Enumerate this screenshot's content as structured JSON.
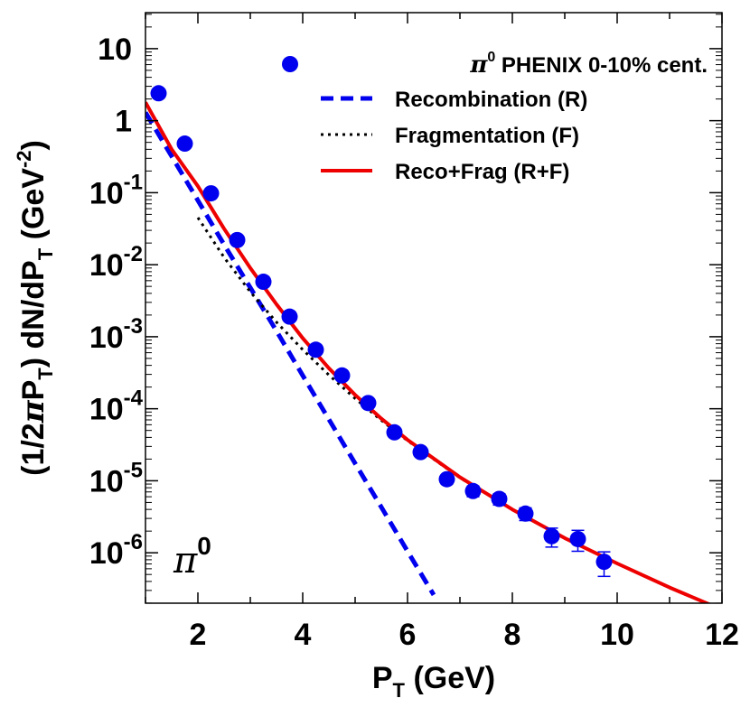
{
  "chart_data": {
    "type": "scatter",
    "xlabel": {
      "pre": "P",
      "sub": "T",
      "post": " (GeV)"
    },
    "ylabel": {
      "p1": "(1/2",
      "pi": "π",
      "p2": "P",
      "s1": "T",
      "p3": ") dN/dP",
      "s2": "T",
      "p4": " (GeV",
      "sup": "-2",
      "p5": ")"
    },
    "xlim": [
      1,
      12
    ],
    "ylim_log10": [
      -6.7,
      1.5
    ],
    "x_ticks": [
      {
        "value": 2,
        "label": "2"
      },
      {
        "value": 4,
        "label": "4"
      },
      {
        "value": 6,
        "label": "6"
      },
      {
        "value": 8,
        "label": "8"
      },
      {
        "value": 10,
        "label": "10"
      },
      {
        "value": 12,
        "label": "12"
      }
    ],
    "y_ticks": [
      {
        "exp": 1,
        "label": "10",
        "sup": ""
      },
      {
        "exp": 0,
        "label": "1",
        "sup": ""
      },
      {
        "exp": -1,
        "label": "10",
        "sup": "-1"
      },
      {
        "exp": -2,
        "label": "10",
        "sup": "-2"
      },
      {
        "exp": -3,
        "label": "10",
        "sup": "-3"
      },
      {
        "exp": -4,
        "label": "10",
        "sup": "-4"
      },
      {
        "exp": -5,
        "label": "10",
        "sup": "-5"
      },
      {
        "exp": -6,
        "label": "10",
        "sup": "-6"
      }
    ],
    "legend_position": "top-right",
    "annotation": {
      "text": "π",
      "sup": "0"
    },
    "data_points": {
      "name": {
        "pi": "π",
        "sup": "0",
        "rest": " PHENIX 0-10% cent."
      },
      "color": "#0000ee",
      "points": [
        {
          "x": 1.25,
          "y": 2.4,
          "err": 0
        },
        {
          "x": 1.75,
          "y": 0.48,
          "err": 0
        },
        {
          "x": 2.25,
          "y": 0.098,
          "err": 0
        },
        {
          "x": 2.75,
          "y": 0.022,
          "err": 0
        },
        {
          "x": 3.25,
          "y": 0.0058,
          "err": 0
        },
        {
          "x": 3.75,
          "y": 0.0019,
          "err": 0
        },
        {
          "x": 4.25,
          "y": 0.00066,
          "err": 0
        },
        {
          "x": 4.75,
          "y": 0.00029,
          "err": 0
        },
        {
          "x": 5.25,
          "y": 0.00012,
          "err": 0
        },
        {
          "x": 5.75,
          "y": 4.7e-05,
          "err": 0
        },
        {
          "x": 6.25,
          "y": 2.5e-05,
          "err": 0
        },
        {
          "x": 6.75,
          "y": 1.05e-05,
          "err": 1.5e-06
        },
        {
          "x": 7.25,
          "y": 7.2e-06,
          "err": 1.2e-06
        },
        {
          "x": 7.75,
          "y": 5.6e-06,
          "err": 1e-06
        },
        {
          "x": 8.25,
          "y": 3.5e-06,
          "err": 7e-07
        },
        {
          "x": 8.75,
          "y": 1.7e-06,
          "err": 5e-07
        },
        {
          "x": 9.25,
          "y": 1.55e-06,
          "err": 5e-07
        },
        {
          "x": 9.75,
          "y": 7.5e-07,
          "err": 2.8e-07
        }
      ]
    },
    "series": [
      {
        "name": "Recombination (R)",
        "color": "#0000ee",
        "style": "dashed",
        "x": [
          1.0,
          1.5,
          2.0,
          2.5,
          3.0,
          3.5,
          4.0,
          4.5,
          5.0,
          5.5,
          6.0,
          6.5
        ],
        "y": [
          1.3,
          0.32,
          0.078,
          0.019,
          0.0048,
          0.0012,
          0.00029,
          7.1e-05,
          1.74e-05,
          4.3e-06,
          1.05e-06,
          2.6e-07
        ]
      },
      {
        "name": "Fragmentation (F)",
        "color": "#000000",
        "style": "dotted",
        "x": [
          2.0,
          2.5,
          3.0,
          3.5,
          4.0,
          4.5,
          5.0,
          5.5,
          6.0,
          7.0,
          8.0,
          9.0,
          10.0,
          11.0,
          12.0
        ],
        "y": [
          0.045,
          0.0126,
          0.0042,
          0.00159,
          0.000661,
          0.000294,
          0.000139,
          6.9e-05,
          3.6e-05,
          1.1e-05,
          4e-06,
          1.6e-06,
          7.1e-07,
          3.3e-07,
          1.62e-07
        ]
      },
      {
        "name": "Reco+Frag (R+F)",
        "color": "#ee0000",
        "style": "solid",
        "x": [
          1.0,
          1.5,
          2.0,
          2.5,
          3.0,
          3.5,
          4.0,
          4.5,
          5.0,
          5.5,
          6.0,
          7.0,
          8.0,
          9.0,
          10.0,
          11.0,
          12.0
        ],
        "y": [
          1.8,
          0.4,
          0.123,
          0.0316,
          0.009,
          0.00282,
          0.000955,
          0.000365,
          0.000156,
          7.3e-05,
          3.7e-05,
          1.12e-05,
          4e-06,
          1.6e-06,
          7.1e-07,
          3.3e-07,
          1.62e-07
        ]
      }
    ]
  }
}
